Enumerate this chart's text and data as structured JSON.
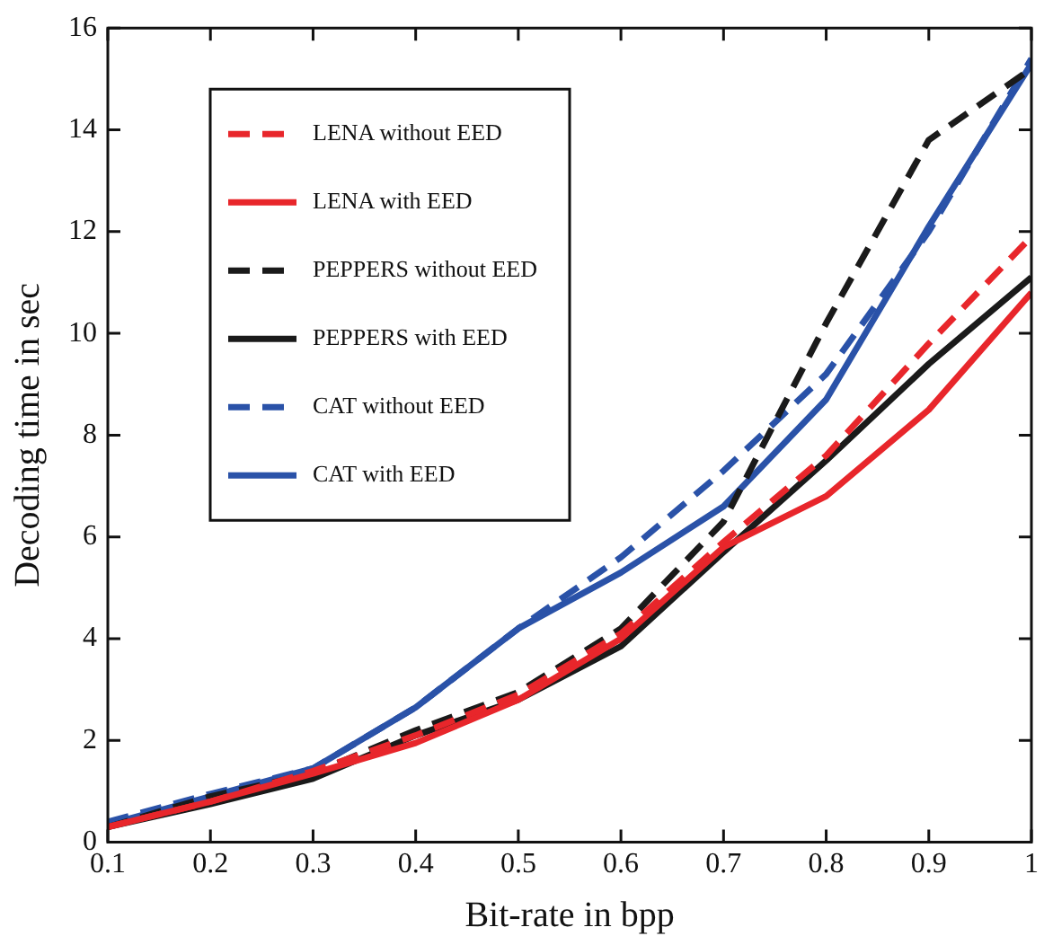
{
  "chart_data": {
    "type": "line",
    "xlabel": "Bit-rate in bpp",
    "ylabel": "Decoding time in sec",
    "x": [
      0.1,
      0.2,
      0.3,
      0.4,
      0.5,
      0.6,
      0.7,
      0.8,
      0.9,
      1
    ],
    "xlim": [
      0.1,
      1
    ],
    "xticks": [
      0.1,
      0.2,
      0.3,
      0.4,
      0.5,
      0.6,
      0.7,
      0.8,
      0.9,
      1
    ],
    "ylim": [
      0,
      16
    ],
    "yticks": [
      0,
      2,
      4,
      6,
      8,
      10,
      12,
      14,
      16
    ],
    "grid": false,
    "legend": "top left",
    "marker": "none",
    "series": [
      {
        "name": "LENA without EED",
        "color": "#e8262b",
        "line_style": "dashed",
        "values": [
          0.3,
          0.8,
          1.4,
          2.1,
          2.9,
          4.1,
          5.9,
          7.6,
          9.8,
          11.9
        ]
      },
      {
        "name": "LENA with EED",
        "color": "#e8262b",
        "line_style": "solid",
        "values": [
          0.3,
          0.8,
          1.35,
          1.95,
          2.8,
          4.0,
          5.8,
          6.8,
          8.5,
          10.8
        ]
      },
      {
        "name": "PEPPERS without EED",
        "color": "#1a1a1a",
        "line_style": "dashed",
        "values": [
          0.3,
          0.9,
          1.35,
          2.2,
          2.95,
          4.2,
          6.3,
          10.2,
          13.8,
          15.2
        ]
      },
      {
        "name": "PEPPERS with EED",
        "color": "#1a1a1a",
        "line_style": "solid",
        "values": [
          0.3,
          0.75,
          1.25,
          2.1,
          2.8,
          3.85,
          5.7,
          7.5,
          9.4,
          11.1
        ]
      },
      {
        "name": "CAT without EED",
        "color": "#2a52a8",
        "line_style": "dashed",
        "values": [
          0.4,
          0.95,
          1.45,
          2.65,
          4.2,
          5.6,
          7.3,
          9.2,
          12.0,
          15.4
        ]
      },
      {
        "name": "CAT with EED",
        "color": "#2a52a8",
        "line_style": "solid",
        "values": [
          0.35,
          0.9,
          1.45,
          2.65,
          4.2,
          5.3,
          6.6,
          8.7,
          12.1,
          15.3
        ]
      }
    ]
  }
}
